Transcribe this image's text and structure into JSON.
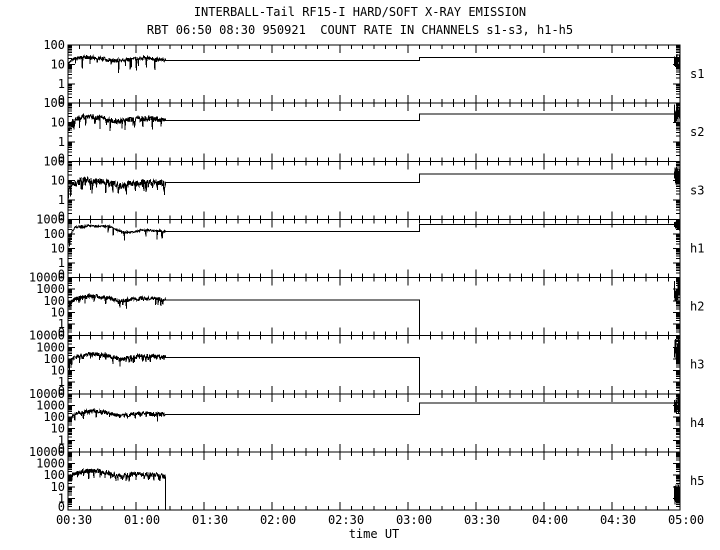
{
  "chart_data": {
    "type": "line",
    "title": "INTERBALL-Tail RF15-I HARD/SOFT X-RAY EMISSION",
    "subtitle": "RBT 06:50 08:30 950921  COUNT RATE IN CHANNELS s1-s3, h1-h5",
    "xlabel": "time UT",
    "y_scale": "log",
    "x_axis": {
      "total_min": 270,
      "major_tick_min": 30,
      "minor_tick_min": 5,
      "tick_labels": [
        "00:30",
        "01:00",
        "01:30",
        "02:00",
        "02:30",
        "03:00",
        "03:30",
        "04:00",
        "04:30",
        "05:00"
      ]
    },
    "panels": [
      {
        "id": "s1",
        "label": "s1",
        "ymax_exp": 2,
        "ymin_exp": -1,
        "ytick_labels": [
          "100",
          "10",
          "1",
          "0"
        ],
        "seed": 11,
        "noise": {
          "end_min": 43,
          "log_spread": 0.1,
          "dip_prob": 0.04,
          "control_points": [
            [
              0,
              10
            ],
            [
              1.5,
              17
            ],
            [
              4,
              21
            ],
            [
              8,
              23
            ],
            [
              12,
              22
            ],
            [
              16,
              19
            ],
            [
              20,
              15
            ],
            [
              24,
              17
            ],
            [
              28,
              19
            ],
            [
              33,
              21
            ],
            [
              38,
              20
            ],
            [
              43,
              17
            ]
          ]
        },
        "flat_level": 16,
        "step_min": 155,
        "step_level": 22,
        "end_blob": {
          "start_min": 267.5,
          "center": 15,
          "log_spread": 0.35
        }
      },
      {
        "id": "s2",
        "label": "s2",
        "ymax_exp": 2,
        "ymin_exp": -1,
        "ytick_labels": [
          "100",
          "10",
          "1",
          "0"
        ],
        "seed": 22,
        "noise": {
          "end_min": 43,
          "log_spread": 0.14,
          "dip_prob": 0.06,
          "control_points": [
            [
              0,
              4
            ],
            [
              2,
              12
            ],
            [
              5,
              18
            ],
            [
              8,
              21
            ],
            [
              11,
              20
            ],
            [
              14,
              17
            ],
            [
              17,
              14
            ],
            [
              20,
              12
            ],
            [
              23,
              11
            ],
            [
              26,
              13
            ],
            [
              30,
              15
            ],
            [
              34,
              16
            ],
            [
              38,
              15
            ],
            [
              43,
              14
            ]
          ]
        },
        "flat_level": 13,
        "step_min": 155,
        "step_level": 27,
        "end_blob": {
          "start_min": 267.5,
          "center": 30,
          "log_spread": 0.5
        }
      },
      {
        "id": "s3",
        "label": "s3",
        "ymax_exp": 2,
        "ymin_exp": -1,
        "ytick_labels": [
          "100",
          "10",
          "1",
          "0"
        ],
        "seed": 33,
        "noise": {
          "end_min": 43,
          "log_spread": 0.18,
          "dip_prob": 0.1,
          "control_points": [
            [
              0,
              2.5
            ],
            [
              2,
              6
            ],
            [
              5,
              9
            ],
            [
              8,
              10
            ],
            [
              11,
              10
            ],
            [
              14,
              9
            ],
            [
              17,
              8
            ],
            [
              20,
              6.5
            ],
            [
              23,
              5.5
            ],
            [
              26,
              6
            ],
            [
              29,
              7
            ],
            [
              33,
              8
            ],
            [
              37,
              8
            ],
            [
              43,
              7.5
            ]
          ]
        },
        "flat_level": 8,
        "step_min": 155,
        "step_level": 22,
        "end_blob": {
          "start_min": 267.5,
          "center": 18,
          "log_spread": 0.5
        }
      },
      {
        "id": "h1",
        "label": "h1",
        "ymax_exp": 3,
        "ymin_exp": -1,
        "ytick_labels": [
          "1000",
          "100",
          "10",
          "1",
          "0"
        ],
        "seed": 44,
        "noise": {
          "end_min": 43,
          "log_spread": 0.06,
          "dip_prob": 0.03,
          "control_points": [
            [
              0,
              25
            ],
            [
              1.5,
              120
            ],
            [
              3,
              280
            ],
            [
              5,
              320
            ],
            [
              7,
              300
            ],
            [
              9,
              380
            ],
            [
              11,
              350
            ],
            [
              13,
              320
            ],
            [
              15,
              360
            ],
            [
              17,
              330
            ],
            [
              19,
              300
            ],
            [
              21,
              200
            ],
            [
              24,
              130
            ],
            [
              27,
              125
            ],
            [
              30,
              150
            ],
            [
              33,
              185
            ],
            [
              36,
              175
            ],
            [
              39,
              160
            ],
            [
              43,
              150
            ]
          ]
        },
        "flat_level": 150,
        "step_min": 155,
        "step_level": 450,
        "end_blob": {
          "start_min": 267.5,
          "center": 350,
          "log_spread": 0.35
        }
      },
      {
        "id": "h2",
        "label": "h2",
        "ymax_exp": 4,
        "ymin_exp": -1,
        "ytick_labels": [
          "10000",
          "1000",
          "100",
          "10",
          "1",
          "0"
        ],
        "seed": 55,
        "noise": {
          "end_min": 43,
          "log_spread": 0.17,
          "dip_prob": 0.08,
          "control_points": [
            [
              0,
              30
            ],
            [
              2,
              110
            ],
            [
              5,
              180
            ],
            [
              8,
              230
            ],
            [
              11,
              250
            ],
            [
              14,
              230
            ],
            [
              17,
              190
            ],
            [
              20,
              130
            ],
            [
              23,
              95
            ],
            [
              26,
              110
            ],
            [
              29,
              140
            ],
            [
              33,
              160
            ],
            [
              37,
              150
            ],
            [
              43,
              130
            ]
          ]
        },
        "flat_level": 120,
        "step_min": 155,
        "step_level": null,
        "end_blob": {
          "start_min": 267.5,
          "center": 700,
          "log_spread": 1.0
        }
      },
      {
        "id": "h3",
        "label": "h3",
        "ymax_exp": 4,
        "ymin_exp": -1,
        "ytick_labels": [
          "10000",
          "1000",
          "100",
          "10",
          "1",
          "0"
        ],
        "seed": 66,
        "noise": {
          "end_min": 43,
          "log_spread": 0.17,
          "dip_prob": 0.08,
          "control_points": [
            [
              0,
              40
            ],
            [
              2,
              120
            ],
            [
              5,
              200
            ],
            [
              8,
              260
            ],
            [
              11,
              280
            ],
            [
              14,
              250
            ],
            [
              17,
              200
            ],
            [
              20,
              140
            ],
            [
              23,
              100
            ],
            [
              26,
              120
            ],
            [
              29,
              160
            ],
            [
              33,
              170
            ],
            [
              37,
              160
            ],
            [
              43,
              140
            ]
          ]
        },
        "flat_level": 130,
        "step_min": 155,
        "step_level": null,
        "end_blob": {
          "start_min": 267.5,
          "center": 700,
          "log_spread": 1.0
        }
      },
      {
        "id": "h4",
        "label": "h4",
        "ymax_exp": 4,
        "ymin_exp": -1,
        "ytick_labels": [
          "10000",
          "1000",
          "100",
          "10",
          "1",
          "0"
        ],
        "seed": 77,
        "noise": {
          "end_min": 43,
          "log_spread": 0.17,
          "dip_prob": 0.08,
          "control_points": [
            [
              0,
              50
            ],
            [
              2,
              150
            ],
            [
              5,
              240
            ],
            [
              8,
              300
            ],
            [
              11,
              320
            ],
            [
              14,
              290
            ],
            [
              17,
              230
            ],
            [
              20,
              160
            ],
            [
              23,
              120
            ],
            [
              26,
              140
            ],
            [
              29,
              180
            ],
            [
              33,
              200
            ],
            [
              37,
              190
            ],
            [
              43,
              180
            ]
          ]
        },
        "flat_level": 170,
        "step_min": 155,
        "step_level": 1600,
        "end_blob": {
          "start_min": 267.5,
          "center": 1200,
          "log_spread": 0.8
        }
      },
      {
        "id": "h5",
        "label": "h5",
        "ymax_exp": 4,
        "ymin_exp": -1,
        "ytick_labels": [
          "10000",
          "1000",
          "100",
          "10",
          "1",
          "0"
        ],
        "seed": 88,
        "noise": {
          "end_min": 43,
          "log_spread": 0.2,
          "dip_prob": 0.1,
          "control_points": [
            [
              0,
              40
            ],
            [
              2,
              110
            ],
            [
              5,
              170
            ],
            [
              8,
              220
            ],
            [
              11,
              230
            ],
            [
              14,
              210
            ],
            [
              17,
              160
            ],
            [
              20,
              110
            ],
            [
              23,
              85
            ],
            [
              26,
              100
            ],
            [
              29,
              120
            ],
            [
              33,
              120
            ],
            [
              37,
              110
            ],
            [
              43,
              95
            ]
          ]
        },
        "flat_level": null,
        "step_min": null,
        "step_level": null,
        "end_blob": {
          "start_min": 267.5,
          "center": 2,
          "log_spread": 1.1
        }
      }
    ]
  }
}
